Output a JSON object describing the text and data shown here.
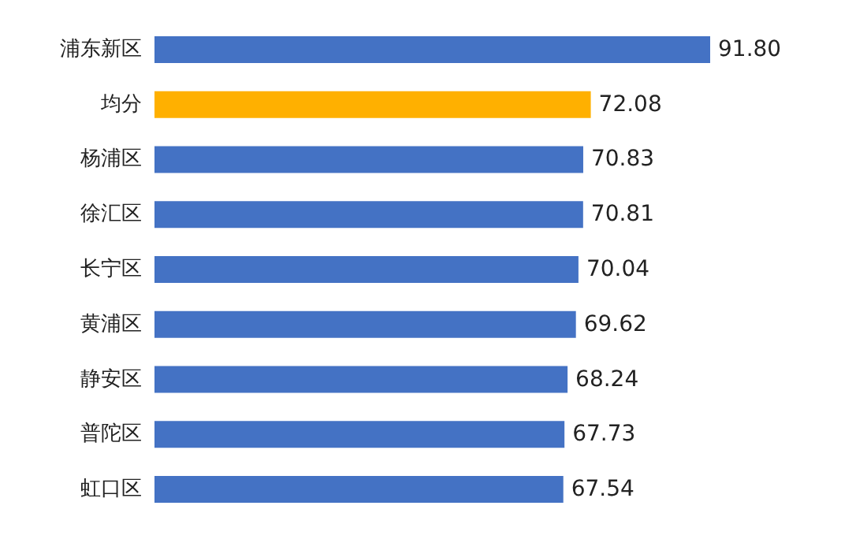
{
  "chart_data": {
    "type": "bar",
    "orientation": "horizontal",
    "categories": [
      "浦东新区",
      "均分",
      "杨浦区",
      "徐汇区",
      "长宁区",
      "黄浦区",
      "静安区",
      "普陀区",
      "虹口区"
    ],
    "values": [
      91.8,
      72.08,
      70.83,
      70.81,
      70.04,
      69.62,
      68.24,
      67.73,
      67.54
    ],
    "colors": [
      "#4472c4",
      "#ffb000",
      "#4472c4",
      "#4472c4",
      "#4472c4",
      "#4472c4",
      "#4472c4",
      "#4472c4",
      "#4472c4"
    ],
    "value_labels": [
      "91.80",
      "72.08",
      "70.83",
      "70.81",
      "70.04",
      "69.62",
      "68.24",
      "67.73",
      "67.54"
    ]
  }
}
